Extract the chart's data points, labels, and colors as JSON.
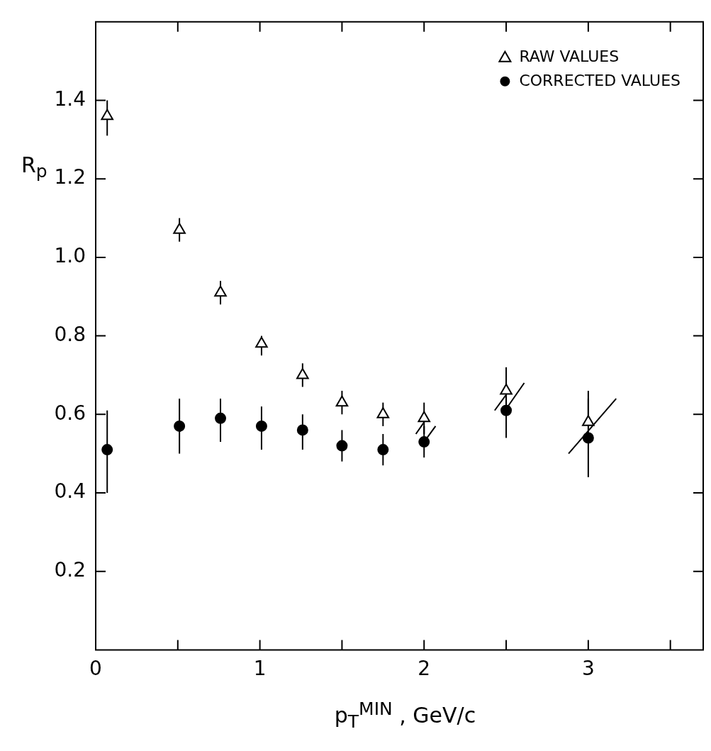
{
  "chart_data": {
    "type": "scatter",
    "xlabel": "p$_{T}$$^{MIN}$ ,  GeV/c",
    "ylabel": "R$_{p}$",
    "x": [
      0.07,
      0.51,
      0.76,
      1.01,
      1.26,
      1.5,
      1.75,
      2.0,
      2.5,
      3.0
    ],
    "series": [
      {
        "name": "RAW VALUES",
        "color": "#000000",
        "marker": "triangle",
        "values": [
          1.36,
          1.07,
          0.91,
          0.78,
          0.7,
          0.63,
          0.6,
          0.59,
          0.66,
          0.58
        ],
        "errors": [
          [
            1.31,
            1.4
          ],
          [
            1.04,
            1.1
          ],
          [
            0.88,
            0.94
          ],
          [
            0.75,
            0.8
          ],
          [
            0.67,
            0.73
          ],
          [
            0.6,
            0.66
          ],
          [
            0.57,
            0.63
          ],
          [
            0.55,
            0.63
          ],
          [
            0.62,
            0.72
          ],
          [
            0.58,
            0.66
          ]
        ]
      },
      {
        "name": "CORRECTED VALUES",
        "color": "#000000",
        "marker": "circle",
        "values": [
          0.51,
          0.57,
          0.59,
          0.57,
          0.56,
          0.52,
          0.51,
          0.53,
          0.61,
          0.54
        ],
        "errors": [
          [
            0.4,
            0.61
          ],
          [
            0.5,
            0.64
          ],
          [
            0.53,
            0.64
          ],
          [
            0.51,
            0.62
          ],
          [
            0.51,
            0.6
          ],
          [
            0.48,
            0.56
          ],
          [
            0.47,
            0.55
          ],
          [
            0.49,
            0.57
          ],
          [
            0.54,
            0.68
          ],
          [
            0.44,
            0.64
          ]
        ]
      },
      {
        "type": "line",
        "color": "#000000",
        "marker": "none",
        "x": [
          1.95,
          2.0,
          null,
          2.0,
          2.07,
          null,
          2.43,
          2.5,
          null,
          2.51,
          2.61,
          null,
          2.88,
          3.17
        ],
        "values": [
          0.55,
          0.58,
          null,
          0.53,
          0.57,
          null,
          0.61,
          0.65,
          null,
          0.62,
          0.68,
          null,
          0.5,
          0.64
        ]
      }
    ],
    "xlim": [
      0,
      3.7
    ],
    "xticks": [
      0,
      {
        "value": 0.5,
        "label": null
      },
      1,
      {
        "value": 1.5,
        "label": null
      },
      2,
      {
        "value": 2.5,
        "label": null
      },
      3,
      {
        "value": 3.5,
        "label": null
      }
    ],
    "ylim": [
      0,
      1.6
    ],
    "yticks": [
      0.2,
      0.4,
      0.6,
      0.8,
      {
        "value": 1.0,
        "label": "1.0"
      },
      1.2,
      1.4
    ],
    "grid": false,
    "legend": "top right"
  }
}
